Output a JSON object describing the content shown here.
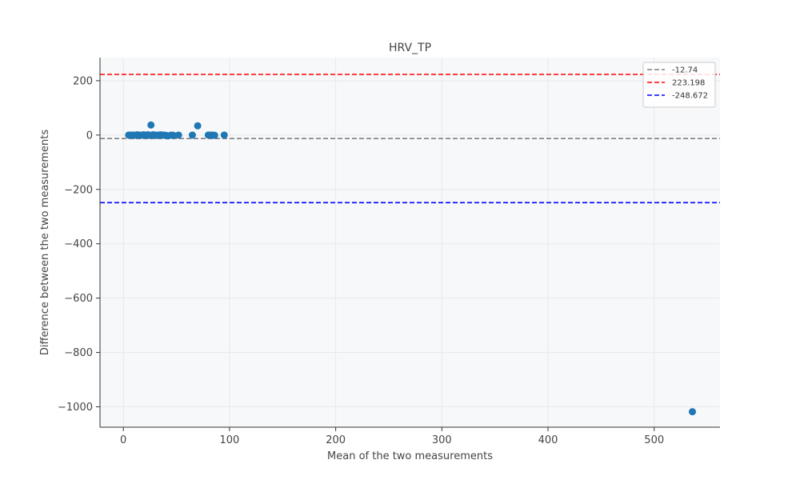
{
  "chart_data": {
    "type": "scatter",
    "title": "HRV_TP",
    "xlabel": "Mean of the two measurements",
    "ylabel": "Difference between the two measurements",
    "xlim": [
      -22,
      562
    ],
    "ylim": [
      -1075,
      285
    ],
    "xticks": [
      0,
      100,
      200,
      300,
      400,
      500
    ],
    "yticks": [
      -1000,
      -800,
      -600,
      -400,
      -200,
      0,
      200
    ],
    "grid": true,
    "legend_position": "top-right",
    "colors": {
      "points": "#1f77b4",
      "mean_line": "#808080",
      "upper_line": "#ff0000",
      "lower_line": "#0000ff",
      "plot_background": "#f7f8fa",
      "grid": "#e6e8ec"
    },
    "reference_lines": [
      {
        "label": "-12.74",
        "y": -12.74,
        "color": "#808080"
      },
      {
        "label": "223.198",
        "y": 223.198,
        "color": "#ff0000"
      },
      {
        "label": "-248.672",
        "y": -248.672,
        "color": "#0000ff"
      }
    ],
    "points": [
      {
        "x": 5,
        "y": 0
      },
      {
        "x": 7,
        "y": 0
      },
      {
        "x": 9,
        "y": 0
      },
      {
        "x": 10,
        "y": -1
      },
      {
        "x": 12,
        "y": 0
      },
      {
        "x": 13,
        "y": 1
      },
      {
        "x": 15,
        "y": 0
      },
      {
        "x": 16,
        "y": -1
      },
      {
        "x": 18,
        "y": 0
      },
      {
        "x": 19,
        "y": 1
      },
      {
        "x": 20,
        "y": 0
      },
      {
        "x": 21,
        "y": -1
      },
      {
        "x": 22,
        "y": 0
      },
      {
        "x": 23,
        "y": 1
      },
      {
        "x": 24,
        "y": 0
      },
      {
        "x": 25,
        "y": -1
      },
      {
        "x": 26,
        "y": 37
      },
      {
        "x": 27,
        "y": 0
      },
      {
        "x": 28,
        "y": 1
      },
      {
        "x": 30,
        "y": 0
      },
      {
        "x": 31,
        "y": -1
      },
      {
        "x": 33,
        "y": 0
      },
      {
        "x": 35,
        "y": 1
      },
      {
        "x": 36,
        "y": 0
      },
      {
        "x": 38,
        "y": 0
      },
      {
        "x": 40,
        "y": -1
      },
      {
        "x": 42,
        "y": -3
      },
      {
        "x": 45,
        "y": 0
      },
      {
        "x": 47,
        "y": -1
      },
      {
        "x": 52,
        "y": 0
      },
      {
        "x": 65,
        "y": 0
      },
      {
        "x": 70,
        "y": 34
      },
      {
        "x": 80,
        "y": 0
      },
      {
        "x": 82,
        "y": 0
      },
      {
        "x": 84,
        "y": 0
      },
      {
        "x": 86,
        "y": -1
      },
      {
        "x": 95,
        "y": 0
      },
      {
        "x": 536,
        "y": -1018
      }
    ]
  }
}
